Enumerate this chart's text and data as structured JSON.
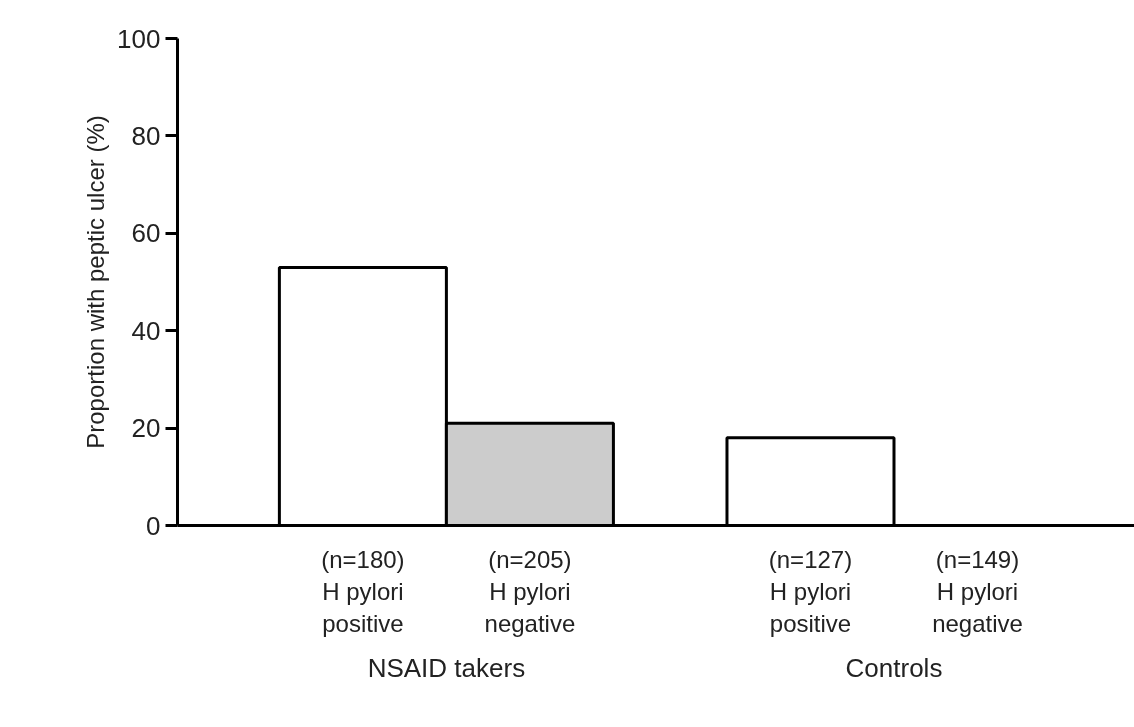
{
  "chart_data": {
    "type": "bar",
    "ylabel": "Proportion with peptic ulcer (%)",
    "categories": [
      "(n=180)\nH pylori\npositive",
      "(n=205)\nH pylori\nnegative",
      "(n=127)\nH pylori\npositive",
      "(n=149)\nH pylori\nnegative"
    ],
    "values": [
      53,
      21,
      18,
      0
    ],
    "colors": [
      "#ffffff",
      "#cccccc",
      "#ffffff",
      "#ffffff"
    ],
    "ylim": [
      0,
      100
    ],
    "yticks": [
      0,
      20,
      40,
      60,
      80,
      100
    ],
    "grid": false,
    "annotations": [
      "NSAID takers",
      "Controls"
    ]
  }
}
